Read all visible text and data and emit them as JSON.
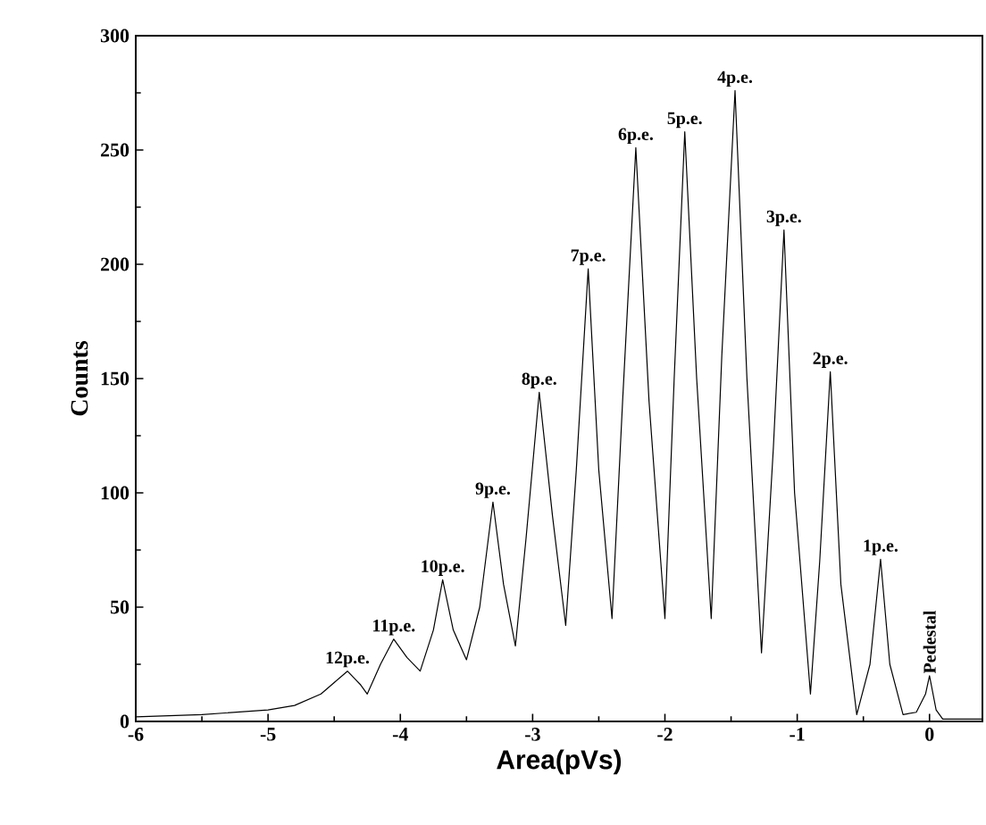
{
  "chart_data": {
    "type": "line",
    "xlabel": "Area(pVs)",
    "ylabel": "Counts",
    "xlim": [
      -6,
      0.4
    ],
    "ylim": [
      0,
      300
    ],
    "xticks": [
      -6,
      -5,
      -4,
      -3,
      -2,
      -1,
      0
    ],
    "yticks": [
      0,
      50,
      100,
      150,
      200,
      250,
      300
    ],
    "marker": "none",
    "line_style": "solid",
    "series": [
      {
        "color": "#000000",
        "x": [
          -6.0,
          -5.5,
          -5.0,
          -4.8,
          -4.6,
          -4.5,
          -4.4,
          -4.3,
          -4.25,
          -4.15,
          -4.05,
          -3.95,
          -3.85,
          -3.75,
          -3.68,
          -3.6,
          -3.5,
          -3.4,
          -3.3,
          -3.22,
          -3.13,
          -3.05,
          -2.95,
          -2.85,
          -2.75,
          -2.67,
          -2.58,
          -2.5,
          -2.4,
          -2.32,
          -2.22,
          -2.12,
          -2.0,
          -1.93,
          -1.85,
          -1.76,
          -1.65,
          -1.57,
          -1.47,
          -1.38,
          -1.27,
          -1.18,
          -1.1,
          -1.02,
          -0.9,
          -0.83,
          -0.75,
          -0.67,
          -0.55,
          -0.45,
          -0.37,
          -0.3,
          -0.2,
          -0.1,
          -0.03,
          0.0,
          0.05,
          0.1,
          0.4
        ],
        "values": [
          2,
          3,
          5,
          7,
          12,
          17,
          22,
          16,
          12,
          25,
          36,
          28,
          22,
          40,
          62,
          40,
          27,
          50,
          96,
          60,
          33,
          80,
          144,
          90,
          42,
          110,
          198,
          110,
          45,
          140,
          251,
          140,
          45,
          150,
          258,
          150,
          45,
          160,
          276,
          150,
          30,
          120,
          215,
          100,
          12,
          70,
          153,
          60,
          3,
          25,
          71,
          25,
          3,
          4,
          12,
          20,
          5,
          1,
          1
        ]
      }
    ],
    "annotations": [
      {
        "text": "12p.e.",
        "x": -4.4,
        "y": 22
      },
      {
        "text": "11p.e.",
        "x": -4.05,
        "y": 36
      },
      {
        "text": "10p.e.",
        "x": -3.68,
        "y": 62
      },
      {
        "text": "9p.e.",
        "x": -3.3,
        "y": 96
      },
      {
        "text": "8p.e.",
        "x": -2.95,
        "y": 144
      },
      {
        "text": "7p.e.",
        "x": -2.58,
        "y": 198
      },
      {
        "text": "6p.e.",
        "x": -2.22,
        "y": 251
      },
      {
        "text": "5p.e.",
        "x": -1.85,
        "y": 258
      },
      {
        "text": "4p.e.",
        "x": -1.47,
        "y": 276
      },
      {
        "text": "3p.e.",
        "x": -1.1,
        "y": 215
      },
      {
        "text": "2p.e.",
        "x": -0.75,
        "y": 153
      },
      {
        "text": "1p.e.",
        "x": -0.37,
        "y": 71
      },
      {
        "text": "Pedestal",
        "x": 0.0,
        "y": 20
      }
    ]
  }
}
